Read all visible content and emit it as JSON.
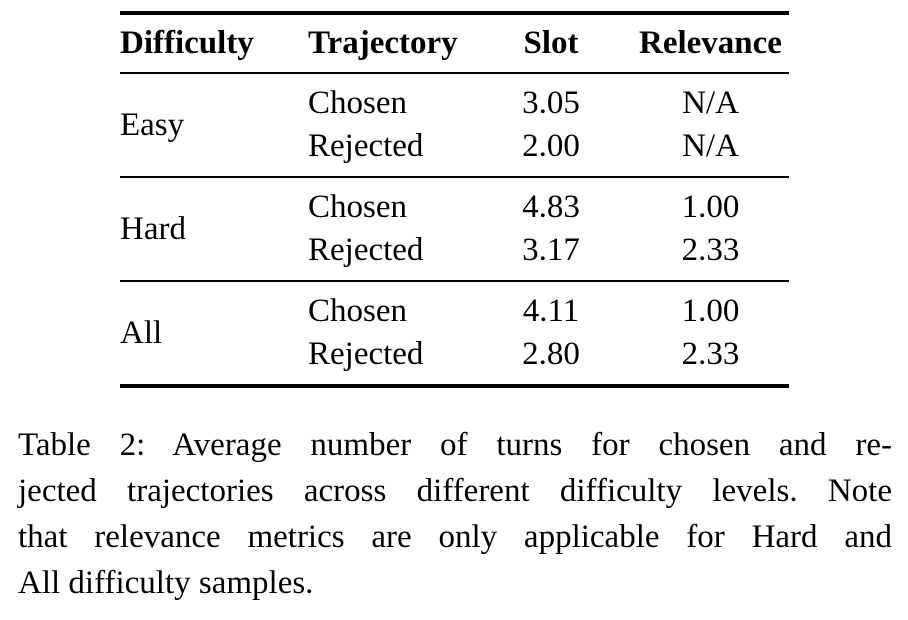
{
  "colors": {
    "text": "#000000",
    "background": "#ffffff",
    "rule": "#000000"
  },
  "table": {
    "columns": [
      "Difficulty",
      "Trajectory",
      "Slot",
      "Relevance"
    ],
    "groups": [
      {
        "difficulty": "Easy",
        "rows": [
          {
            "trajectory": "Chosen",
            "slot": "3.05",
            "relevance": "N/A"
          },
          {
            "trajectory": "Rejected",
            "slot": "2.00",
            "relevance": "N/A"
          }
        ]
      },
      {
        "difficulty": "Hard",
        "rows": [
          {
            "trajectory": "Chosen",
            "slot": "4.83",
            "relevance": "1.00"
          },
          {
            "trajectory": "Rejected",
            "slot": "3.17",
            "relevance": "2.33"
          }
        ]
      },
      {
        "difficulty": "All",
        "rows": [
          {
            "trajectory": "Chosen",
            "slot": "4.11",
            "relevance": "1.00"
          },
          {
            "trajectory": "Rejected",
            "slot": "2.80",
            "relevance": "2.33"
          }
        ]
      }
    ]
  },
  "caption": {
    "lines": [
      "Table 2: Average number of turns for chosen and re-",
      "jected trajectories across different difficulty levels. Note",
      "that relevance metrics are only applicable for Hard and",
      "All difficulty samples."
    ]
  }
}
